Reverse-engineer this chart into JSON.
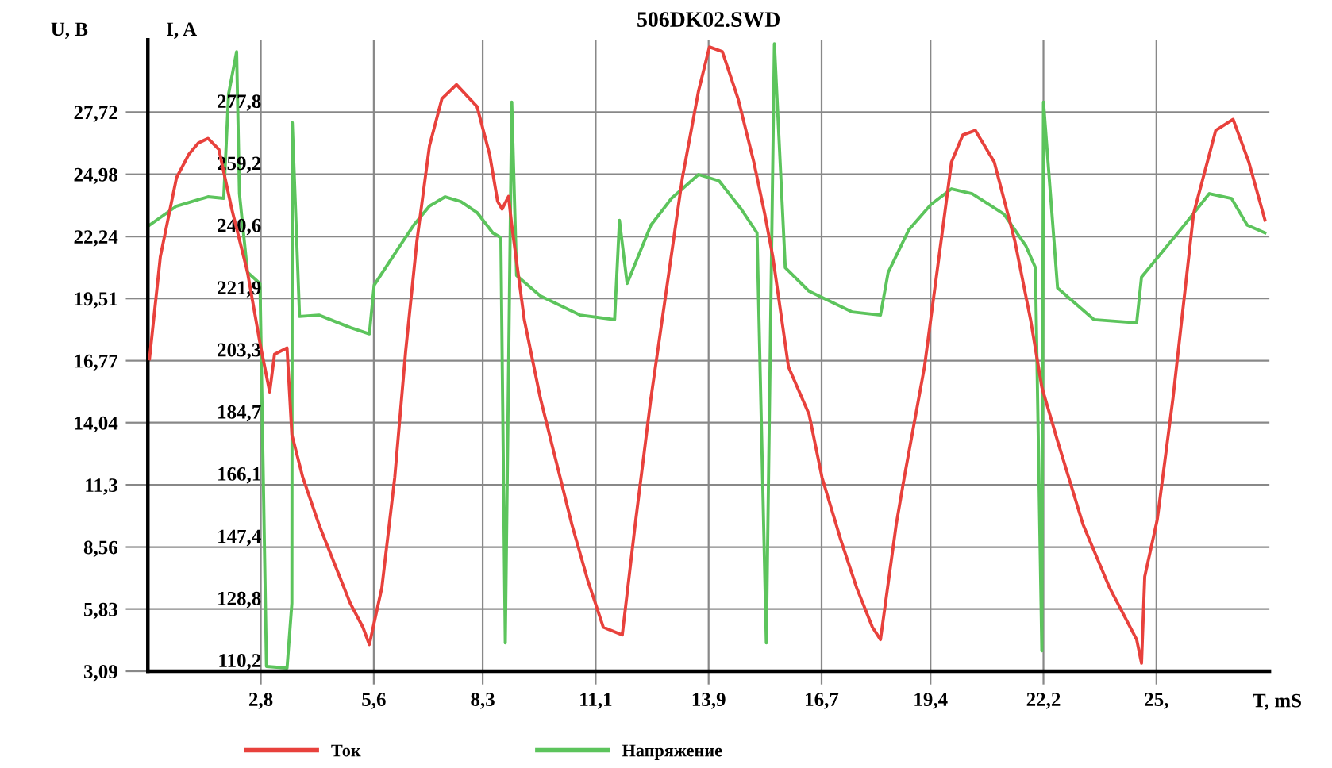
{
  "chart_data": {
    "type": "line",
    "title": "506DK02.SWD",
    "xlabel": "T, mS",
    "ylabel": "U, B",
    "y2label": "I, A",
    "xlim": [
      0,
      27.8
    ],
    "ylim": [
      3.09,
      30.9
    ],
    "y2lim": [
      110.2,
      299.4
    ],
    "xticks": [
      {
        "value": 2.8,
        "label": "2,8"
      },
      {
        "value": 5.6,
        "label": "5,6"
      },
      {
        "value": 8.3,
        "label": "8,3"
      },
      {
        "value": 11.1,
        "label": "11,1"
      },
      {
        "value": 13.9,
        "label": "13,9"
      },
      {
        "value": 16.7,
        "label": "16,7"
      },
      {
        "value": 19.4,
        "label": "19,4"
      },
      {
        "value": 22.2,
        "label": "22,2"
      },
      {
        "value": 25,
        "label": "25,"
      }
    ],
    "yticks": [
      {
        "value": 3.09,
        "label": "3,09"
      },
      {
        "value": 5.83,
        "label": "5,83"
      },
      {
        "value": 8.56,
        "label": "8,56"
      },
      {
        "value": 11.3,
        "label": "11,3"
      },
      {
        "value": 14.04,
        "label": "14,04"
      },
      {
        "value": 16.77,
        "label": "16,77"
      },
      {
        "value": 19.51,
        "label": "19,51"
      },
      {
        "value": 22.24,
        "label": "22,24"
      },
      {
        "value": 24.98,
        "label": "24,98"
      },
      {
        "value": 27.72,
        "label": "27,72"
      }
    ],
    "y2ticks": [
      {
        "value": 110.2,
        "label": "110,2"
      },
      {
        "value": 128.8,
        "label": "128,8"
      },
      {
        "value": 147.4,
        "label": "147,4"
      },
      {
        "value": 166.1,
        "label": "166,1"
      },
      {
        "value": 184.7,
        "label": "184,7"
      },
      {
        "value": 203.3,
        "label": "203,3"
      },
      {
        "value": 221.9,
        "label": "221,9"
      },
      {
        "value": 240.6,
        "label": "240,6"
      },
      {
        "value": 259.2,
        "label": "259,2"
      },
      {
        "value": 277.8,
        "label": "277,8"
      }
    ],
    "grid": true,
    "legend": "bottom",
    "series": [
      {
        "name": "Ток",
        "color": "#e8413c",
        "axis": "y2",
        "x": [
          0.04,
          0.31,
          0.71,
          1.02,
          1.25,
          1.49,
          1.76,
          2.08,
          2.47,
          2.78,
          3.02,
          3.14,
          3.45,
          3.57,
          3.84,
          4.24,
          4.63,
          5.02,
          5.33,
          5.49,
          5.8,
          6.12,
          6.39,
          6.67,
          6.98,
          7.29,
          7.65,
          8.16,
          8.47,
          8.67,
          8.78,
          8.94,
          9.02,
          9.33,
          9.73,
          10.12,
          10.51,
          10.9,
          11.29,
          11.76,
          12.08,
          12.47,
          12.86,
          13.25,
          13.65,
          13.92,
          14.24,
          14.63,
          15.02,
          15.29,
          15.49,
          15.88,
          16.39,
          16.71,
          17.18,
          17.57,
          17.96,
          18.16,
          18.55,
          18.75,
          19.25,
          19.92,
          20.2,
          20.51,
          20.98,
          21.49,
          21.88,
          22.16,
          22.55,
          23.18,
          23.84,
          24.51,
          24.63,
          24.71,
          25.02,
          25.41,
          25.92,
          26.47,
          26.9,
          27.29,
          27.69
        ],
        "values": [
          203.8,
          234.5,
          258.1,
          265.2,
          268.5,
          269.9,
          266.6,
          248.7,
          229.8,
          208.5,
          193.9,
          205.2,
          207.1,
          181.1,
          168.3,
          154.2,
          142.3,
          130.5,
          123.4,
          118.2,
          135.2,
          168.3,
          206.1,
          239.2,
          267.6,
          281.8,
          286.0,
          279.4,
          265.2,
          251.0,
          248.7,
          252.5,
          243.9,
          215.6,
          192.0,
          173.1,
          154.2,
          137.6,
          123.4,
          121.1,
          154.2,
          192.0,
          225.0,
          258.1,
          284.1,
          297.3,
          295.9,
          281.8,
          262.8,
          247.3,
          234.5,
          201.4,
          187.2,
          168.3,
          149.4,
          135.2,
          123.4,
          119.7,
          154.2,
          168.3,
          201.4,
          262.8,
          270.9,
          272.3,
          262.8,
          239.2,
          215.6,
          195.3,
          179.2,
          154.2,
          135.2,
          119.7,
          112.6,
          138.6,
          155.6,
          192.0,
          247.3,
          272.3,
          275.6,
          262.8,
          245.4
        ]
      },
      {
        "name": "Напряжение",
        "color": "#5cc45c",
        "x": [
          0.04,
          0.71,
          1.49,
          1.88,
          2.0,
          2.2,
          2.27,
          2.47,
          2.78,
          2.94,
          3.45,
          3.57,
          3.58,
          3.76,
          4.24,
          5.02,
          5.49,
          5.61,
          6.2,
          6.59,
          6.98,
          7.37,
          7.76,
          8.16,
          8.55,
          8.75,
          8.86,
          9.02,
          9.14,
          9.73,
          10.71,
          11.57,
          11.69,
          11.88,
          12.47,
          12.98,
          13.65,
          14.16,
          14.71,
          15.1,
          15.33,
          15.53,
          15.8,
          16.39,
          17.45,
          18.16,
          18.35,
          18.86,
          19.41,
          19.92,
          20.43,
          21.22,
          21.76,
          22.0,
          22.16,
          22.2,
          22.55,
          23.45,
          24.51,
          24.63,
          25.69,
          26.31,
          26.86,
          27.25,
          27.69
        ],
        "values": [
          22.74,
          23.58,
          23.99,
          23.92,
          28.51,
          30.38,
          24.13,
          20.66,
          20.17,
          3.3,
          3.23,
          6.08,
          27.26,
          18.72,
          18.78,
          18.23,
          17.95,
          20.1,
          21.7,
          22.74,
          23.58,
          23.99,
          23.78,
          23.3,
          22.4,
          22.19,
          4.34,
          28.16,
          20.52,
          19.62,
          18.78,
          18.58,
          22.95,
          20.17,
          22.74,
          23.92,
          24.97,
          24.69,
          23.44,
          22.4,
          4.34,
          30.73,
          20.87,
          19.83,
          18.92,
          18.78,
          20.66,
          22.53,
          23.65,
          24.34,
          24.13,
          23.23,
          21.84,
          20.87,
          3.99,
          28.16,
          19.97,
          18.58,
          18.44,
          20.45,
          22.74,
          24.13,
          23.92,
          22.74,
          22.4
        ]
      }
    ]
  }
}
